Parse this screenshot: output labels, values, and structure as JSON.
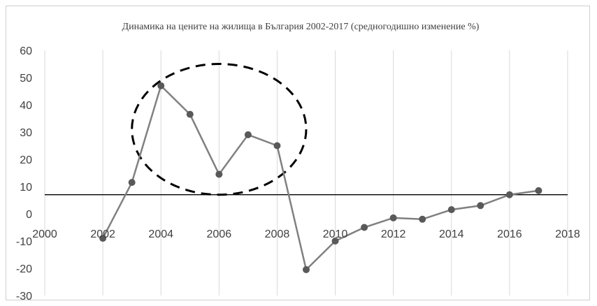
{
  "chart_data": {
    "type": "scatter",
    "title": "Динамика на цените на жилища в България 2002-2017 (средногодишно изменение %)",
    "xlabel": "",
    "ylabel": "",
    "xlim": [
      2000,
      2018
    ],
    "ylim": [
      -30,
      60
    ],
    "x_ticks": [
      2000,
      2002,
      2004,
      2006,
      2008,
      2010,
      2012,
      2014,
      2016,
      2018
    ],
    "y_ticks": [
      60,
      50,
      40,
      30,
      20,
      10,
      0,
      -10,
      -20,
      -30
    ],
    "grid": "vertical",
    "legend": "none",
    "series": [
      {
        "x": [
          2002,
          2003,
          2004,
          2005,
          2006,
          2007,
          2008,
          2009,
          2010,
          2011,
          2012,
          2013,
          2014,
          2015,
          2016,
          2017
        ],
        "y": [
          -9,
          11.5,
          47,
          36.5,
          14.5,
          29,
          25,
          -20.5,
          -10,
          -5,
          -1.5,
          -2,
          1.5,
          3,
          7,
          8.5
        ],
        "color": "#808080",
        "marker_color": "#595959"
      }
    ],
    "reference_line": {
      "y": 7,
      "color": "#000000"
    },
    "annotation": {
      "shape": "dashed-ellipse",
      "cx": 2006,
      "cy": 31,
      "rx": 3,
      "ry": 24,
      "color": "#000000"
    }
  }
}
